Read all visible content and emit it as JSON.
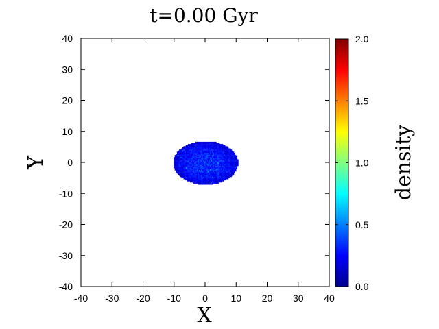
{
  "chart_data": {
    "type": "heatmap",
    "title": "t=0.00 Gyr",
    "xlabel": "X",
    "ylabel": "Y",
    "xlim": [
      -40,
      40
    ],
    "ylim": [
      -40,
      40
    ],
    "xticks": [
      "-40",
      "-30",
      "-20",
      "-10",
      "0",
      "10",
      "20",
      "30",
      "40"
    ],
    "yticks": [
      "40",
      "30",
      "20",
      "10",
      "0",
      "-10",
      "-20",
      "-30",
      "-40"
    ],
    "grid": false,
    "colorbar": {
      "label": "density",
      "range": [
        0.0,
        2.0
      ],
      "ticks": [
        "2.0",
        "1.5",
        "1.0",
        "0.5",
        "0.0"
      ],
      "colormap": "jet"
    },
    "disk": {
      "center": [
        0,
        0
      ],
      "semi_axis_x": 10.5,
      "semi_axis_y": 7,
      "typical_density": [
        0.1,
        0.45
      ]
    }
  }
}
